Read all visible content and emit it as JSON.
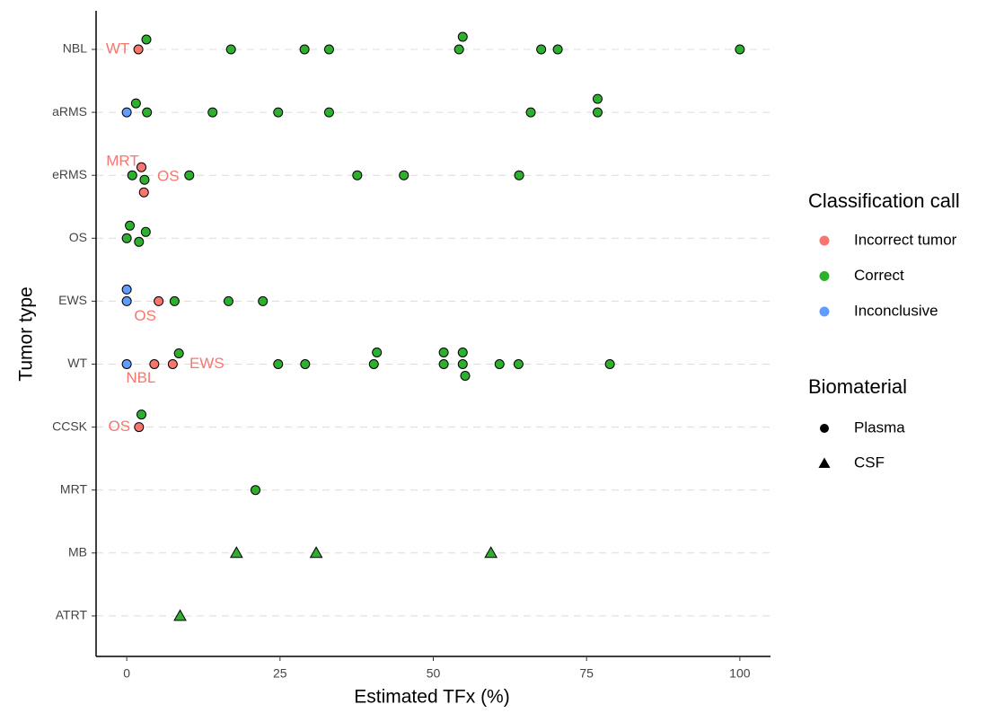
{
  "chart_data": {
    "type": "scatter",
    "x_label": "Estimated TFx (%)",
    "y_label": "Tumor type",
    "categories": [
      "NBL",
      "aRMS",
      "eRMS",
      "OS",
      "EWS",
      "WT",
      "CCSK",
      "MRT",
      "MB",
      "ATRT"
    ],
    "xlim": [
      -5,
      105
    ],
    "xticks": [
      0,
      25,
      50,
      75,
      100
    ],
    "legend_title": "Classification call",
    "shape_legend_title": "Biomaterial",
    "shapes": [
      {
        "name": "Plasma",
        "shape": "circle"
      },
      {
        "name": "CSF",
        "shape": "triangle"
      }
    ],
    "series": [
      {
        "name": "Incorrect tumor",
        "color": "#F8766D",
        "x": [
          1.9,
          2.4,
          2.8,
          5.2,
          4.5,
          7.5,
          2
        ],
        "y": [
          "NBL",
          "eRMS",
          "eRMS",
          "EWS",
          "WT",
          "WT",
          "CCSK"
        ],
        "biomaterial": [
          "Plasma",
          "Plasma",
          "Plasma",
          "Plasma",
          "Plasma",
          "Plasma",
          "Plasma"
        ],
        "labels": [
          "WT",
          "MRT",
          "OS",
          "OS",
          "NBL",
          "EWS",
          "OS"
        ]
      },
      {
        "name": "Correct",
        "color": "#2DB02D",
        "x": [
          3.2,
          17,
          29,
          33,
          54.2,
          54.8,
          67.6,
          70.3,
          100,
          1.5,
          3.3,
          14,
          24.7,
          33,
          65.9,
          76.8,
          76.8,
          0.9,
          2.9,
          10.2,
          37.6,
          45.2,
          64,
          0.5,
          0,
          2,
          3.1,
          7.8,
          16.6,
          22.2,
          8.5,
          24.7,
          29.1,
          40.3,
          40.8,
          51.7,
          51.7,
          54.8,
          54.8,
          55.2,
          60.8,
          63.9,
          78.8,
          2.4,
          21,
          17.9,
          30.9,
          59.4,
          8.7
        ],
        "y": [
          "NBL",
          "NBL",
          "NBL",
          "NBL",
          "NBL",
          "NBL",
          "NBL",
          "NBL",
          "NBL",
          "aRMS",
          "aRMS",
          "aRMS",
          "aRMS",
          "aRMS",
          "aRMS",
          "aRMS",
          "aRMS",
          "eRMS",
          "eRMS",
          "eRMS",
          "eRMS",
          "eRMS",
          "eRMS",
          "OS",
          "OS",
          "OS",
          "OS",
          "EWS",
          "EWS",
          "EWS",
          "WT",
          "WT",
          "WT",
          "WT",
          "WT",
          "WT",
          "WT",
          "WT",
          "WT",
          "WT",
          "WT",
          "WT",
          "WT",
          "CCSK",
          "MRT",
          "MB",
          "MB",
          "MB",
          "ATRT"
        ],
        "biomaterial": [
          "Plasma",
          "Plasma",
          "Plasma",
          "Plasma",
          "Plasma",
          "Plasma",
          "Plasma",
          "Plasma",
          "Plasma",
          "Plasma",
          "Plasma",
          "Plasma",
          "Plasma",
          "Plasma",
          "Plasma",
          "Plasma",
          "Plasma",
          "Plasma",
          "Plasma",
          "Plasma",
          "Plasma",
          "Plasma",
          "Plasma",
          "Plasma",
          "Plasma",
          "Plasma",
          "Plasma",
          "Plasma",
          "Plasma",
          "Plasma",
          "Plasma",
          "Plasma",
          "Plasma",
          "Plasma",
          "Plasma",
          "Plasma",
          "Plasma",
          "Plasma",
          "Plasma",
          "Plasma",
          "Plasma",
          "Plasma",
          "Plasma",
          "Plasma",
          "Plasma",
          "CSF",
          "CSF",
          "CSF",
          "CSF"
        ]
      },
      {
        "name": "Inconclusive",
        "color": "#619CFF",
        "x": [
          0,
          0,
          0,
          0
        ],
        "y": [
          "aRMS",
          "EWS",
          "EWS",
          "WT"
        ],
        "biomaterial": [
          "Plasma",
          "Plasma",
          "Plasma",
          "Plasma"
        ]
      }
    ]
  }
}
